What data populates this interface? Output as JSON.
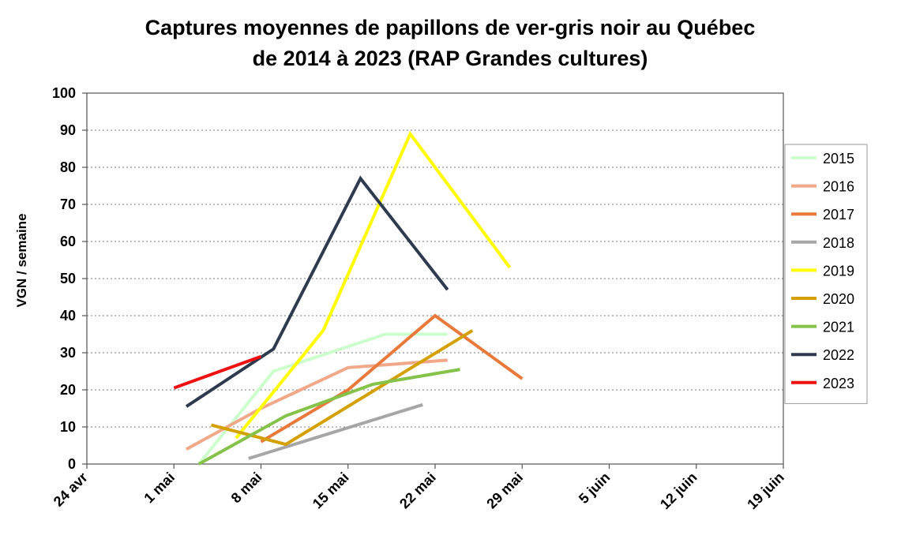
{
  "chart_data": {
    "type": "line",
    "title": [
      "Captures moyennes de papillons de ver-gris noir au Québec",
      "de 2014 à 2023 (RAP Grandes cultures)"
    ],
    "xlabel": "",
    "ylabel": "VGN / semaine",
    "ylim": [
      0,
      100
    ],
    "yticks": [
      0,
      10,
      20,
      30,
      40,
      50,
      60,
      70,
      80,
      90,
      100
    ],
    "xlim": [
      "24 avr",
      "19 juin"
    ],
    "xticks": [
      "24 avr",
      "1 mai",
      "8 mai",
      "15 mai",
      "22 mai",
      "29 mai",
      "5 juin",
      "12 juin",
      "19 juin"
    ],
    "grid": "horizontal dotted",
    "legend_position": "right",
    "series": [
      {
        "name": "2015",
        "color": "#ccffcc",
        "points": [
          [
            "3 mai",
            0
          ],
          [
            "9 mai",
            25
          ],
          [
            "18 mai",
            35
          ],
          [
            "23 mai",
            35
          ]
        ]
      },
      {
        "name": "2016",
        "color": "#f0a888",
        "points": [
          [
            "2 mai",
            4
          ],
          [
            "8 mai",
            15
          ],
          [
            "15 mai",
            26
          ],
          [
            "23 mai",
            28
          ]
        ]
      },
      {
        "name": "2017",
        "color": "#e8793a",
        "points": [
          [
            "8 mai",
            6
          ],
          [
            "15 mai",
            20
          ],
          [
            "22 mai",
            40
          ],
          [
            "29 mai",
            23
          ]
        ]
      },
      {
        "name": "2018",
        "color": "#a6a6a6",
        "points": [
          [
            "7 mai",
            1.5
          ],
          [
            "21 mai",
            16
          ]
        ]
      },
      {
        "name": "2019",
        "color": "#ffff00",
        "points": [
          [
            "6 mai",
            7
          ],
          [
            "13 mai",
            36
          ],
          [
            "20 mai",
            89
          ],
          [
            "28 mai",
            53
          ]
        ]
      },
      {
        "name": "2020",
        "color": "#d4a000",
        "points": [
          [
            "4 mai",
            10.5
          ],
          [
            "10 mai",
            5.3
          ],
          [
            "25 mai",
            36
          ]
        ]
      },
      {
        "name": "2021",
        "color": "#84c24a",
        "points": [
          [
            "3 mai",
            0
          ],
          [
            "10 mai",
            13
          ],
          [
            "17 mai",
            21.5
          ],
          [
            "24 mai",
            25.5
          ]
        ]
      },
      {
        "name": "2022",
        "color": "#2e3a4e",
        "points": [
          [
            "2 mai",
            15.5
          ],
          [
            "9 mai",
            31
          ],
          [
            "16 mai",
            77
          ],
          [
            "23 mai",
            47
          ]
        ]
      },
      {
        "name": "2023",
        "color": "#ee1111",
        "points": [
          [
            "1 mai",
            20.5
          ],
          [
            "8 mai",
            29
          ]
        ]
      }
    ]
  }
}
